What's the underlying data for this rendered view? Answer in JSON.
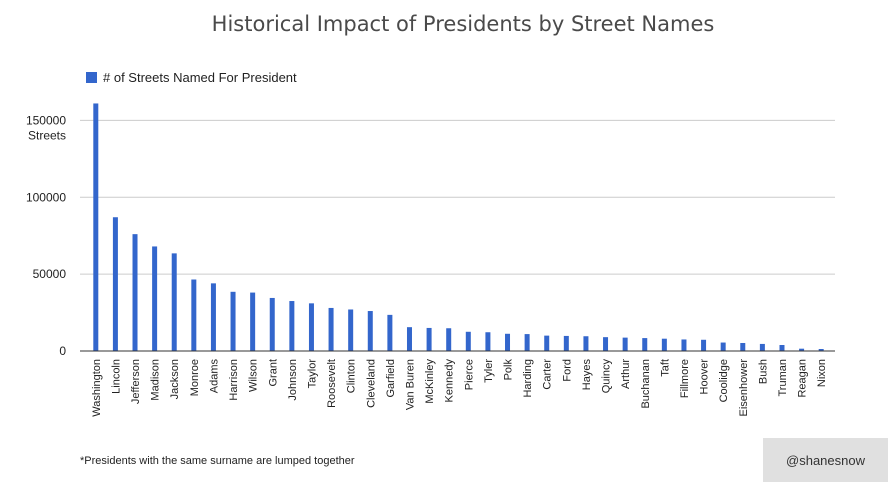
{
  "chart_data": {
    "type": "bar",
    "title": "Historical Impact of Presidents by Street Names",
    "ylabel": "Streets",
    "legend_position": "top-left",
    "grid": true,
    "ylim": [
      0,
      160000
    ],
    "yticks": [
      0,
      50000,
      100000,
      150000
    ],
    "color": "#3366cc",
    "series": [
      {
        "name": "# of Streets Named For President",
        "values": [
          161000,
          87000,
          76000,
          68000,
          63500,
          46500,
          44000,
          38500,
          38000,
          34500,
          32500,
          31000,
          28000,
          27000,
          26000,
          23500,
          15500,
          15000,
          14800,
          12500,
          12200,
          11200,
          11000,
          10000,
          9800,
          9600,
          9000,
          8700,
          8400,
          8000,
          7500,
          7300,
          5500,
          5200,
          4600,
          3900,
          1500,
          1300
        ]
      }
    ],
    "categories": [
      "Washington",
      "Lincoln",
      "Jefferson",
      "Madison",
      "Jackson",
      "Monroe",
      "Adams",
      "Harrison",
      "Wilson",
      "Grant",
      "Johnson",
      "Taylor",
      "Roosevelt",
      "Clinton",
      "Cleveland",
      "Garfield",
      "Van Buren",
      "McKinley",
      "Kennedy",
      "Pierce",
      "Tyler",
      "Polk",
      "Harding",
      "Carter",
      "Ford",
      "Hayes",
      "Quincy",
      "Arthur",
      "Buchanan",
      "Taft",
      "Fillmore",
      "Hoover",
      "Coolidge",
      "Eisenhower",
      "Bush",
      "Truman",
      "Reagan",
      "Nixon"
    ]
  },
  "footnote": "*Presidents with the same surname are lumped together",
  "credit": "@shanesnow"
}
